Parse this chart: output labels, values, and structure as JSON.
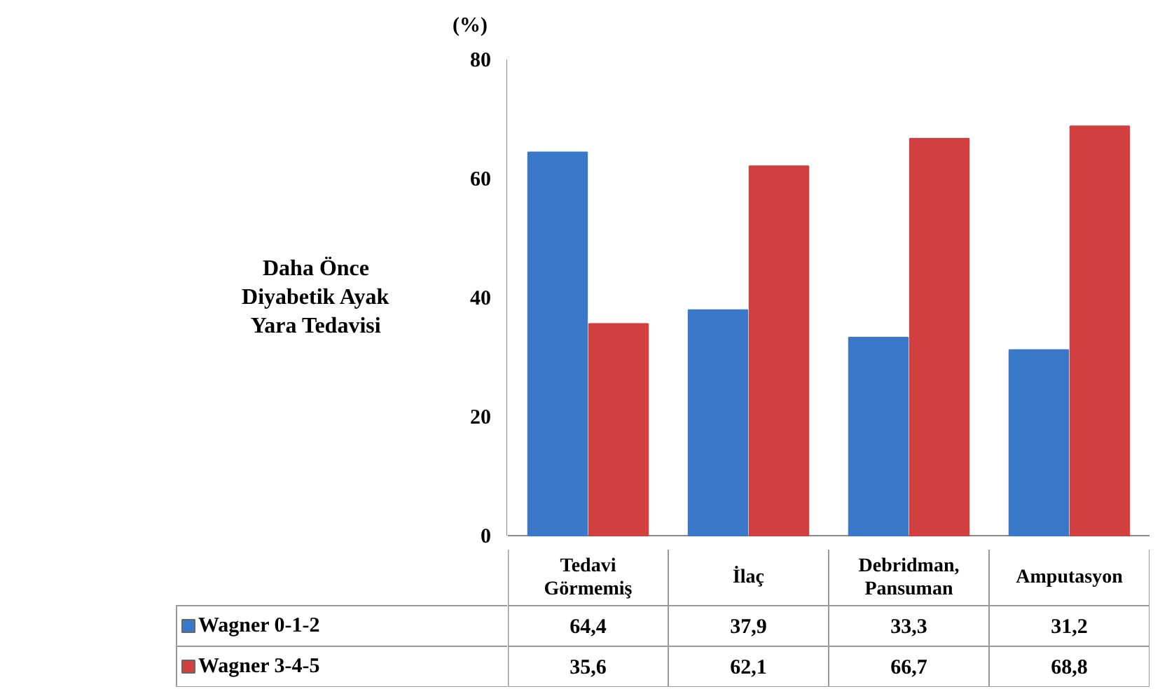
{
  "chart_data": {
    "type": "bar",
    "ylabel": "Daha Önce Diyabetik Ayak Yara Tedavisi",
    "annotations": [
      "(%)"
    ],
    "categories": [
      "Tedavi Görmemiş",
      "İlaç",
      "Debridman, Pansuman",
      "Amputasyon"
    ],
    "series": [
      {
        "name": "Wagner 0-1-2",
        "color": "#3a78c9",
        "values": [
          64.4,
          37.9,
          33.3,
          31.2
        ],
        "value_labels": [
          "64,4",
          "37,9",
          "33,3",
          "31,2"
        ]
      },
      {
        "name": "Wagner 3-4-5",
        "color": "#d13f3f",
        "values": [
          35.6,
          62.1,
          66.7,
          68.8
        ],
        "value_labels": [
          "35,6",
          "62,1",
          "66,7",
          "68,8"
        ]
      }
    ],
    "ylim": [
      0,
      80
    ],
    "yticks": [
      0,
      20,
      40,
      60,
      80
    ],
    "legend": "bottom"
  }
}
